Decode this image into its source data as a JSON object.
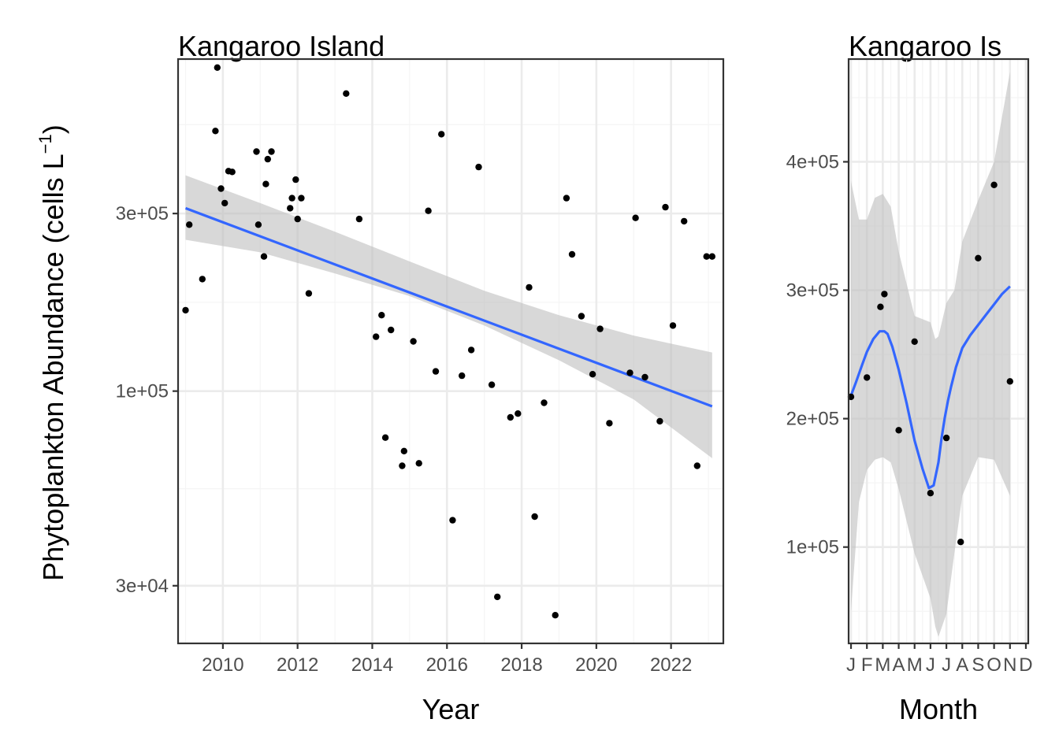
{
  "figure": {
    "ylabel_main": "Phytoplankton Abundance (cells L",
    "ylabel_sup": "−1",
    "ylabel_close": ")"
  },
  "colors": {
    "point": "#000000",
    "smooth": "#3366ff",
    "ribbon": "#bebebe",
    "grid_major": "#ebebeb",
    "grid_minor": "#f5f5f5",
    "panel_border": "#333333"
  },
  "chart_data": [
    {
      "type": "scatter",
      "title": "Kangaroo Island",
      "xlabel": "Year",
      "ylabel": "Phytoplankton Abundance (cells L−1)",
      "y_scale": "log10",
      "xlim": [
        2008.8,
        2023.4
      ],
      "ylim": [
        21000,
        780000
      ],
      "x_ticks": [
        2010,
        2012,
        2014,
        2016,
        2018,
        2020,
        2022
      ],
      "x_tick_labels": [
        "2010",
        "2012",
        "2014",
        "2016",
        "2018",
        "2020",
        "2022"
      ],
      "y_ticks": [
        30000,
        100000,
        300000
      ],
      "y_tick_labels": [
        "3e+04",
        "1e+05",
        "3e+05"
      ],
      "grid": true,
      "points": [
        [
          2009.0,
          165000
        ],
        [
          2009.1,
          280000
        ],
        [
          2009.45,
          200000
        ],
        [
          2009.8,
          500000
        ],
        [
          2009.85,
          740000
        ],
        [
          2009.95,
          350000
        ],
        [
          2010.05,
          320000
        ],
        [
          2010.15,
          390000
        ],
        [
          2010.25,
          388000
        ],
        [
          2010.9,
          440000
        ],
        [
          2010.95,
          280000
        ],
        [
          2011.1,
          230000
        ],
        [
          2011.15,
          360000
        ],
        [
          2011.2,
          420000
        ],
        [
          2011.3,
          440000
        ],
        [
          2011.8,
          310000
        ],
        [
          2011.85,
          330000
        ],
        [
          2011.95,
          370000
        ],
        [
          2012.0,
          290000
        ],
        [
          2012.1,
          330000
        ],
        [
          2012.3,
          183000
        ],
        [
          2013.3,
          630000
        ],
        [
          2013.65,
          290000
        ],
        [
          2014.1,
          140000
        ],
        [
          2014.25,
          160000
        ],
        [
          2014.35,
          75000
        ],
        [
          2014.5,
          146000
        ],
        [
          2014.8,
          63000
        ],
        [
          2014.85,
          69000
        ],
        [
          2015.1,
          136000
        ],
        [
          2015.25,
          64000
        ],
        [
          2015.5,
          305000
        ],
        [
          2015.7,
          113000
        ],
        [
          2015.85,
          490000
        ],
        [
          2016.15,
          45000
        ],
        [
          2016.4,
          110000
        ],
        [
          2016.65,
          129000
        ],
        [
          2016.85,
          400000
        ],
        [
          2017.2,
          104000
        ],
        [
          2017.35,
          28000
        ],
        [
          2017.7,
          85000
        ],
        [
          2017.9,
          87000
        ],
        [
          2018.2,
          190000
        ],
        [
          2018.35,
          46000
        ],
        [
          2018.6,
          93000
        ],
        [
          2018.9,
          25000
        ],
        [
          2019.2,
          330000
        ],
        [
          2019.35,
          233000
        ],
        [
          2019.6,
          159000
        ],
        [
          2019.9,
          111000
        ],
        [
          2020.1,
          147000
        ],
        [
          2020.35,
          82000
        ],
        [
          2020.9,
          112000
        ],
        [
          2021.05,
          292000
        ],
        [
          2021.3,
          109000
        ],
        [
          2021.7,
          83000
        ],
        [
          2021.85,
          312000
        ],
        [
          2022.05,
          150000
        ],
        [
          2022.35,
          286000
        ],
        [
          2022.7,
          63000
        ],
        [
          2022.95,
          230000
        ],
        [
          2023.1,
          230000
        ]
      ],
      "smooth_x": [
        2009.0,
        2023.1
      ],
      "smooth_y": [
        310000,
        91000
      ],
      "ribbon_x": [
        2009.0,
        2011.0,
        2013.0,
        2015.0,
        2017.0,
        2019.0,
        2021.0,
        2023.1
      ],
      "ribbon_lo": [
        255000,
        236000,
        207000,
        180000,
        150000,
        121000,
        95000,
        66000
      ],
      "ribbon_hi": [
        380000,
        320000,
        268000,
        223000,
        186000,
        160000,
        141000,
        127000
      ]
    },
    {
      "type": "scatter",
      "title": "Kangaroo Is",
      "xlabel": "Month",
      "ylabel": "",
      "xlim": [
        0.85,
        12.15
      ],
      "ylim": [
        25000,
        480000
      ],
      "x_ticks": [
        1,
        2,
        3,
        4,
        5,
        6,
        7,
        8,
        9,
        10,
        11,
        12
      ],
      "x_tick_labels": [
        "J",
        "F",
        "M",
        "A",
        "M",
        "J",
        "J",
        "A",
        "S",
        "O",
        "N",
        "D"
      ],
      "y_ticks": [
        100000,
        200000,
        300000,
        400000
      ],
      "y_tick_labels": [
        "1e+05",
        "2e+05",
        "3e+05",
        "4e+05"
      ],
      "grid": true,
      "points": [
        [
          1.0,
          217000
        ],
        [
          2.0,
          232000
        ],
        [
          2.85,
          287000
        ],
        [
          3.1,
          297000
        ],
        [
          4.0,
          191000
        ],
        [
          5.0,
          260000
        ],
        [
          6.0,
          142000
        ],
        [
          7.0,
          185000
        ],
        [
          7.9,
          104000
        ],
        [
          9.0,
          325000
        ],
        [
          10.0,
          382000
        ],
        [
          11.0,
          229000
        ]
      ],
      "smooth_x": [
        1.0,
        1.3,
        1.7,
        2.0,
        2.4,
        2.8,
        3.1,
        3.3,
        3.6,
        4.0,
        4.5,
        5.0,
        5.5,
        5.9,
        6.2,
        6.5,
        6.7,
        6.9,
        7.1,
        7.3,
        7.6,
        8.0,
        8.5,
        9.0,
        9.5,
        10.0,
        10.5,
        11.0
      ],
      "smooth_y": [
        218000,
        228000,
        242000,
        252000,
        262000,
        268000,
        268000,
        266000,
        256000,
        238000,
        212000,
        183000,
        161000,
        146000,
        148000,
        166000,
        185000,
        201000,
        214000,
        225000,
        240000,
        255000,
        265000,
        273000,
        281000,
        289000,
        297000,
        303000
      ],
      "ribbon_x": [
        1.0,
        1.5,
        2.0,
        2.5,
        3.0,
        3.5,
        4.0,
        5.0,
        6.0,
        6.3,
        6.5,
        7.0,
        7.5,
        8.0,
        9.0,
        10.0,
        11.0
      ],
      "ribbon_lo": [
        50000,
        135000,
        160000,
        168000,
        170000,
        166000,
        145000,
        95000,
        60000,
        38000,
        30000,
        48000,
        95000,
        140000,
        170000,
        168000,
        140000
      ],
      "ribbon_hi": [
        385000,
        355000,
        355000,
        372000,
        375000,
        365000,
        330000,
        280000,
        275000,
        262000,
        264000,
        290000,
        300000,
        338000,
        370000,
        400000,
        470000
      ]
    }
  ]
}
